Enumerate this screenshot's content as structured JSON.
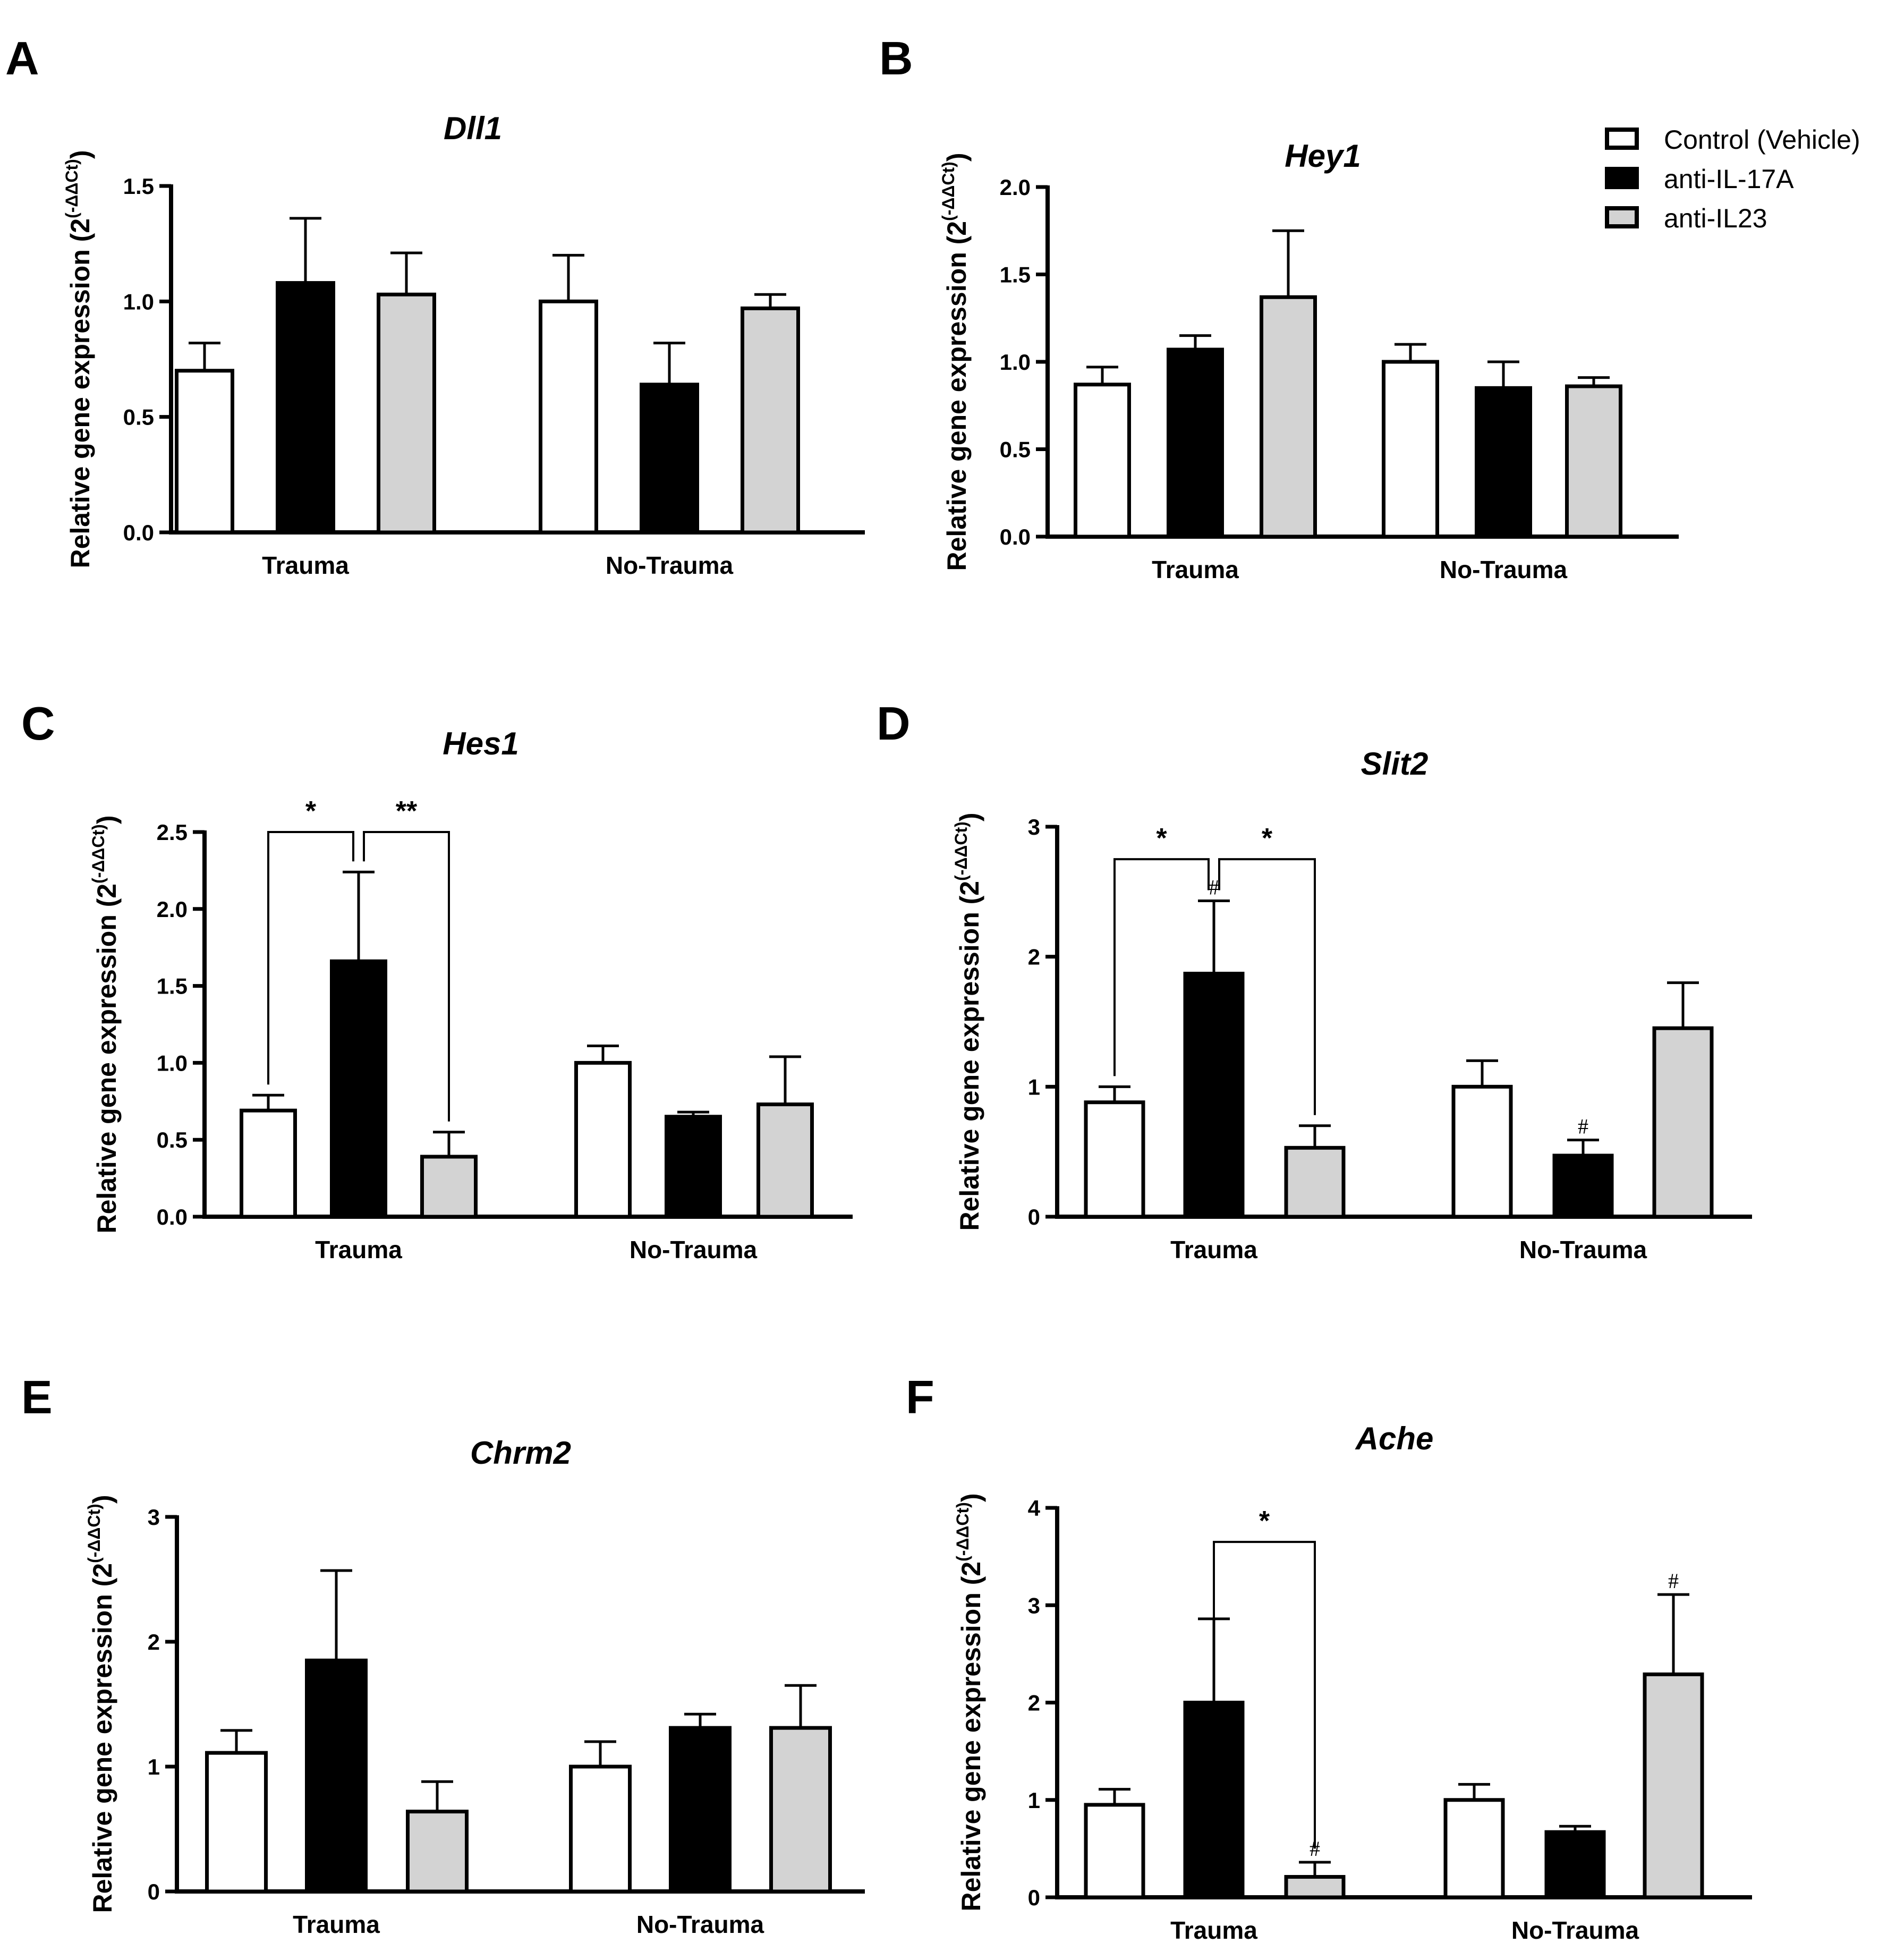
{
  "legend": {
    "entries": [
      {
        "label": "Control (Vehicle)",
        "color": "#ffffff"
      },
      {
        "label": "anti-IL-17A",
        "color": "#000000"
      },
      {
        "label": "anti-IL23",
        "color": "#d3d3d3"
      }
    ]
  },
  "chart_data": [
    {
      "panel": "A",
      "type": "bar",
      "title": "Dll1",
      "ylabel": "Relative gene expression (2",
      "ylabel_sup": "(-ΔΔCt)",
      "ylabel_close": ")",
      "ylim": [
        0,
        1.5
      ],
      "yticks": [
        "0.0",
        "0.5",
        "1.0",
        "1.5"
      ],
      "categories": [
        "Trauma",
        "No-Trauma"
      ],
      "series": [
        {
          "name": "Control (Vehicle)",
          "values": [
            0.7,
            1.0
          ],
          "errors": [
            0.12,
            0.2
          ]
        },
        {
          "name": "anti-IL-17A",
          "values": [
            1.08,
            0.64
          ],
          "errors": [
            0.28,
            0.18
          ]
        },
        {
          "name": "anti-IL23",
          "values": [
            1.03,
            0.97
          ],
          "errors": [
            0.18,
            0.06
          ]
        }
      ],
      "significance": []
    },
    {
      "panel": "B",
      "type": "bar",
      "title": "Hey1",
      "ylabel": "Relative gene expression (2",
      "ylabel_sup": "(-ΔΔCt)",
      "ylabel_close": ")",
      "ylim": [
        0,
        2.0
      ],
      "yticks": [
        "0.0",
        "0.5",
        "1.0",
        "1.5",
        "2.0"
      ],
      "categories": [
        "Trauma",
        "No-Trauma"
      ],
      "series": [
        {
          "name": "Control (Vehicle)",
          "values": [
            0.87,
            1.0
          ],
          "errors": [
            0.1,
            0.1
          ]
        },
        {
          "name": "anti-IL-17A",
          "values": [
            1.07,
            0.85
          ],
          "errors": [
            0.08,
            0.15
          ]
        },
        {
          "name": "anti-IL23",
          "values": [
            1.37,
            0.86
          ],
          "errors": [
            0.38,
            0.05
          ]
        }
      ],
      "significance": []
    },
    {
      "panel": "C",
      "type": "bar",
      "title": "Hes1",
      "ylabel": "Relative gene expression (2",
      "ylabel_sup": "(-ΔΔCt)",
      "ylabel_close": ")",
      "ylim": [
        0,
        2.5
      ],
      "yticks": [
        "0.0",
        "0.5",
        "1.0",
        "1.5",
        "2.0",
        "2.5"
      ],
      "categories": [
        "Trauma",
        "No-Trauma"
      ],
      "series": [
        {
          "name": "Control (Vehicle)",
          "values": [
            0.69,
            1.0
          ],
          "errors": [
            0.1,
            0.11
          ]
        },
        {
          "name": "anti-IL-17A",
          "values": [
            1.66,
            0.65
          ],
          "errors": [
            0.58,
            0.03
          ]
        },
        {
          "name": "anti-IL23",
          "values": [
            0.39,
            0.73
          ],
          "errors": [
            0.16,
            0.31
          ]
        }
      ],
      "significance": [
        {
          "group": 0,
          "from": 0,
          "to": 1,
          "label": "*",
          "height": 2.5
        },
        {
          "group": 0,
          "from": 1,
          "to": 2,
          "label": "**",
          "height": 2.5
        }
      ],
      "hashes": []
    },
    {
      "panel": "D",
      "type": "bar",
      "title": "Slit2",
      "ylabel": "Relative gene expression (2",
      "ylabel_sup": "(-ΔΔCt)",
      "ylabel_close": ")",
      "ylim": [
        0,
        3
      ],
      "yticks": [
        "0",
        "1",
        "2",
        "3"
      ],
      "categories": [
        "Trauma",
        "No-Trauma"
      ],
      "series": [
        {
          "name": "Control (Vehicle)",
          "values": [
            0.88,
            1.0
          ],
          "errors": [
            0.12,
            0.2
          ]
        },
        {
          "name": "anti-IL-17A",
          "values": [
            1.87,
            0.47
          ],
          "errors": [
            0.56,
            0.12
          ]
        },
        {
          "name": "anti-IL23",
          "values": [
            0.53,
            1.45
          ],
          "errors": [
            0.17,
            0.35
          ]
        }
      ],
      "significance": [
        {
          "group": 0,
          "from": 0,
          "to": 1,
          "label": "*",
          "height": 2.75
        },
        {
          "group": 0,
          "from": 1,
          "to": 2,
          "label": "*",
          "height": 2.75
        }
      ],
      "hashes": [
        {
          "group": 0,
          "series": 1,
          "label": "#"
        },
        {
          "group": 1,
          "series": 1,
          "label": "#"
        }
      ]
    },
    {
      "panel": "E",
      "type": "bar",
      "title": "Chrm2",
      "ylabel": "Relative gene expression (2",
      "ylabel_sup": "(-ΔΔCt)",
      "ylabel_close": ")",
      "ylim": [
        0,
        3
      ],
      "yticks": [
        "0",
        "1",
        "2",
        "3"
      ],
      "categories": [
        "Trauma",
        "No-Trauma"
      ],
      "series": [
        {
          "name": "Control (Vehicle)",
          "values": [
            1.11,
            1.0
          ],
          "errors": [
            0.18,
            0.2
          ]
        },
        {
          "name": "anti-IL-17A",
          "values": [
            1.85,
            1.31
          ],
          "errors": [
            0.72,
            0.11
          ]
        },
        {
          "name": "anti-IL23",
          "values": [
            0.64,
            1.31
          ],
          "errors": [
            0.24,
            0.34
          ]
        }
      ],
      "significance": [],
      "hashes": []
    },
    {
      "panel": "F",
      "type": "bar",
      "title": "Ache",
      "ylabel": "Relative gene expression (2",
      "ylabel_sup": "(-ΔΔCt)",
      "ylabel_close": ")",
      "ylim": [
        0,
        4
      ],
      "yticks": [
        "0",
        "1",
        "2",
        "3",
        "4"
      ],
      "categories": [
        "Trauma",
        "No-Trauma"
      ],
      "series": [
        {
          "name": "Control (Vehicle)",
          "values": [
            0.95,
            1.0
          ],
          "errors": [
            0.16,
            0.16
          ]
        },
        {
          "name": "anti-IL-17A",
          "values": [
            2.0,
            0.67
          ],
          "errors": [
            0.86,
            0.06
          ]
        },
        {
          "name": "anti-IL23",
          "values": [
            0.21,
            2.29
          ],
          "errors": [
            0.15,
            0.82
          ]
        }
      ],
      "significance": [
        {
          "group": 0,
          "from": 1,
          "to": 2,
          "label": "*",
          "height": 3.65,
          "leftTo": 2.86,
          "rightTo": 0.5
        }
      ],
      "hashes": [
        {
          "group": 0,
          "series": 2,
          "label": "#"
        },
        {
          "group": 1,
          "series": 2,
          "label": "#"
        }
      ]
    }
  ]
}
